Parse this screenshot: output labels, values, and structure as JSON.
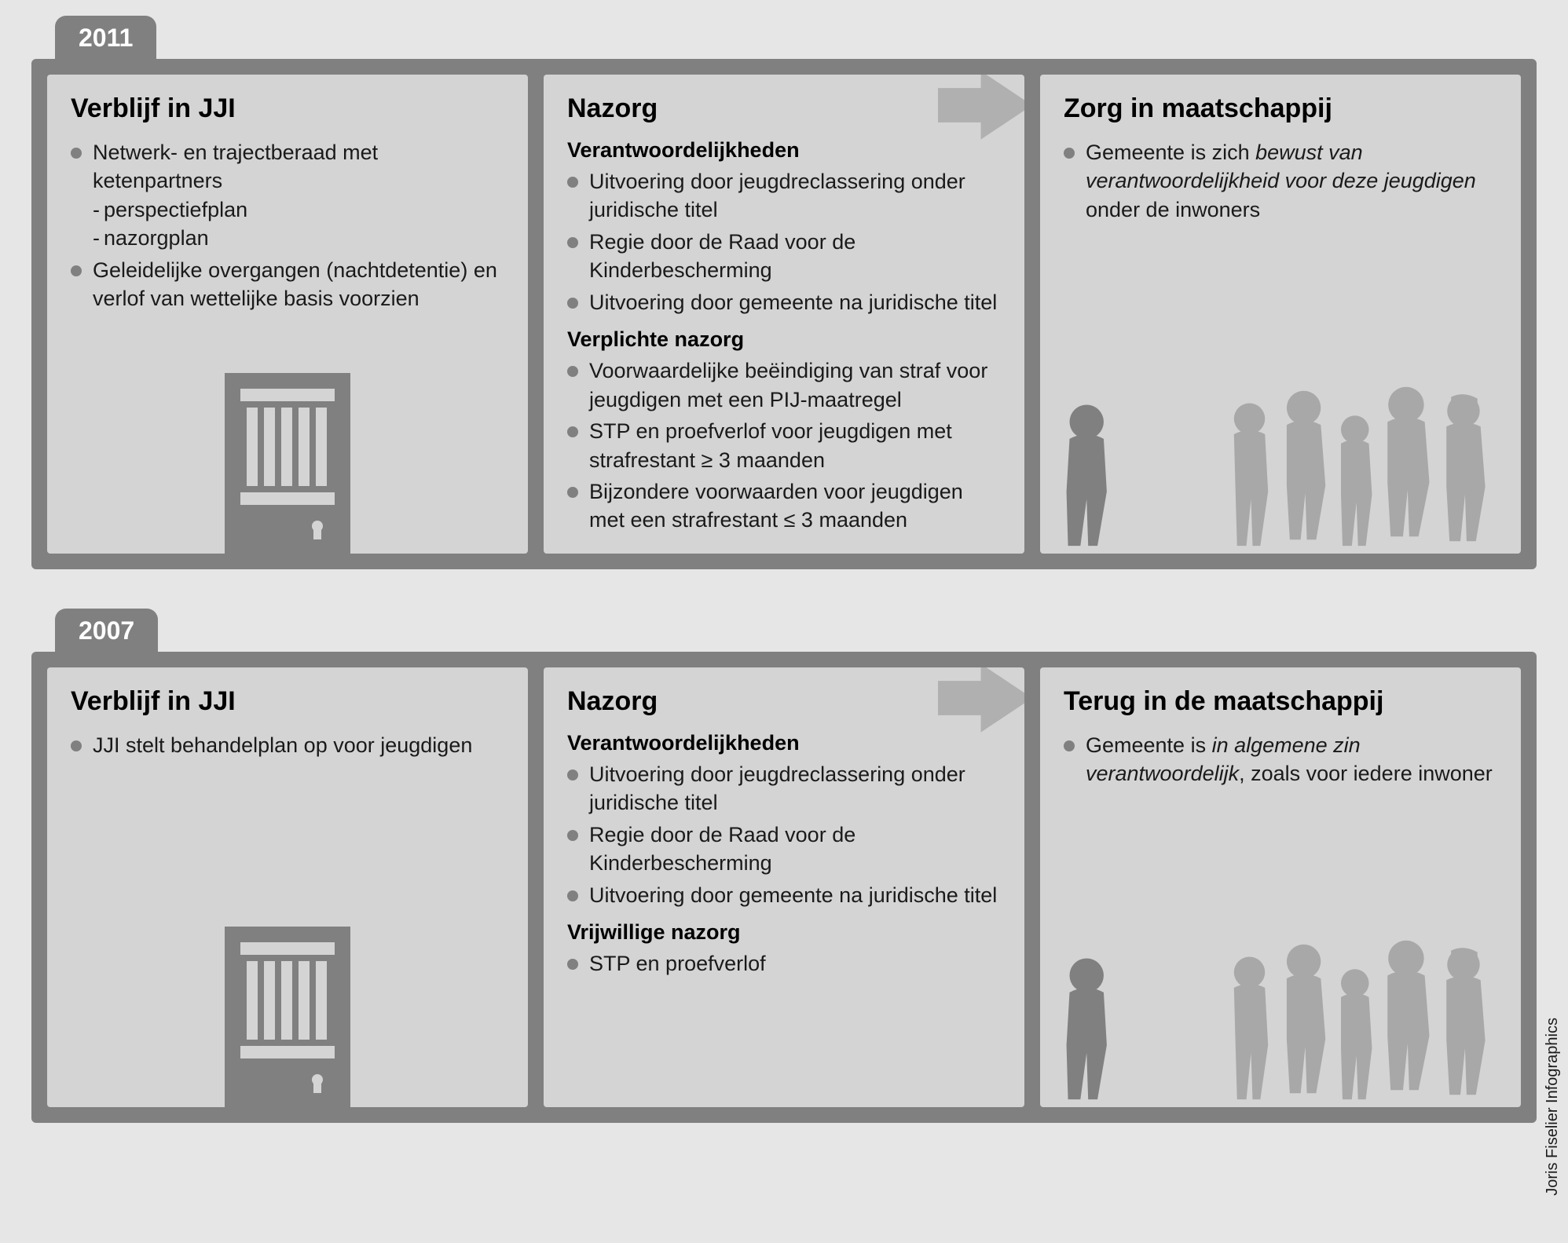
{
  "type": "infographic",
  "background_color": "#e6e6e6",
  "panel_frame_color": "#808080",
  "column_bg_color": "#d4d4d4",
  "bullet_color": "#808080",
  "text_color": "#1a1a1a",
  "arrow_color": "#b0b0b0",
  "title_fontsize": 34,
  "body_fontsize": 27,
  "credit": "Joris Fiselier Infographics",
  "panels": [
    {
      "year": "2011",
      "columns": [
        {
          "title": "Verblijf in JJI",
          "sections": [
            {
              "bullets": [
                {
                  "text": "Netwerk- en trajectberaad met  ketenpartners",
                  "subs": [
                    "perspectiefplan",
                    "nazorgplan"
                  ]
                },
                {
                  "text": "Geleidelijke overgangen (nachtdetentie) en verlof van wettelijke basis voorzien"
                }
              ]
            }
          ],
          "has_door": true
        },
        {
          "title": "Nazorg",
          "has_arrow": true,
          "sections": [
            {
              "heading": "Verantwoordelijkheden",
              "bullets": [
                {
                  "text": "Uitvoering door jeugdreclassering onder juridische titel"
                },
                {
                  "text": "Regie door de Raad voor de Kinderbescherming"
                },
                {
                  "text": "Uitvoering door gemeente na juridische titel"
                }
              ]
            },
            {
              "heading": "Verplichte nazorg",
              "bullets": [
                {
                  "text": "Voorwaardelijke beëindiging van straf voor jeugdigen met een PIJ-maatregel"
                },
                {
                  "text": "STP en proefverlof voor jeugdigen met strafrestant ≥ 3 maanden"
                },
                {
                  "text": "Bijzondere voorwaarden voor jeugdigen met een strafrestant ≤ 3 maanden"
                }
              ]
            }
          ]
        },
        {
          "title": "Zorg in maatschappij",
          "sections": [
            {
              "bullets": [
                {
                  "rich": [
                    {
                      "t": "Gemeente is zich "
                    },
                    {
                      "t": "bewust van verantwoordelijkheid voor deze jeugdigen",
                      "italic": true
                    },
                    {
                      "t": " onder de inwoners"
                    }
                  ]
                }
              ]
            }
          ],
          "has_people": true
        }
      ]
    },
    {
      "year": "2007",
      "columns": [
        {
          "title": "Verblijf in JJI",
          "sections": [
            {
              "bullets": [
                {
                  "text": "JJI stelt behandelplan op voor jeugdigen"
                }
              ]
            }
          ],
          "has_door": true
        },
        {
          "title": "Nazorg",
          "has_arrow": true,
          "sections": [
            {
              "heading": "Verantwoordelijkheden",
              "bullets": [
                {
                  "text": "Uitvoering door jeugdreclassering onder juridische titel"
                },
                {
                  "text": "Regie door de Raad voor de Kinderbescherming"
                },
                {
                  "text": "Uitvoering door gemeente na juridische titel"
                }
              ]
            },
            {
              "heading": "Vrijwillige nazorg",
              "bullets": [
                {
                  "text": "STP en proefverlof"
                }
              ]
            }
          ]
        },
        {
          "title": "Terug in de maatschappij",
          "sections": [
            {
              "bullets": [
                {
                  "rich": [
                    {
                      "t": "Gemeente is "
                    },
                    {
                      "t": "in algemene zin verantwoordelijk",
                      "italic": true
                    },
                    {
                      "t": ", zoals voor iedere inwoner"
                    }
                  ]
                }
              ]
            }
          ],
          "has_people": true
        }
      ]
    }
  ]
}
